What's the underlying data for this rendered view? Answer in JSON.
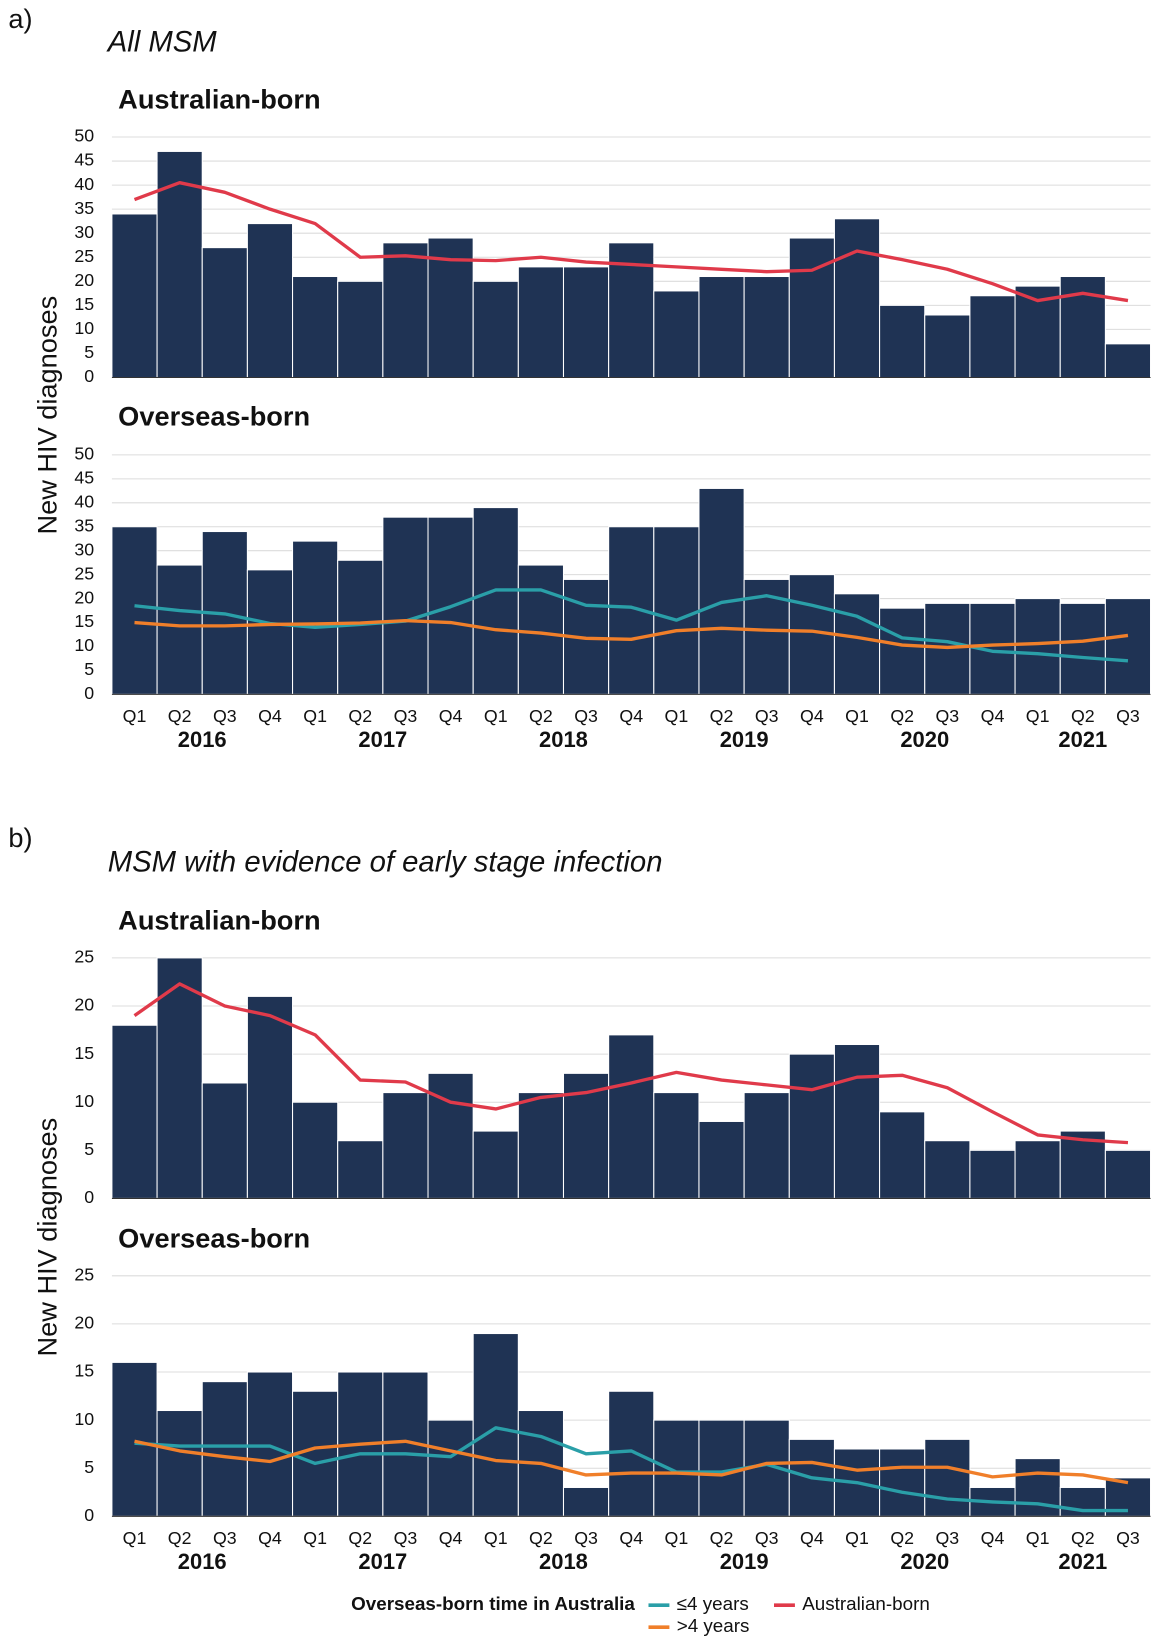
{
  "panels": [
    {
      "label": "a)",
      "title": "All MSM",
      "ylabel": "New HIV diagnoses"
    },
    {
      "label": "b)",
      "title": "MSM with evidence of early stage infection",
      "ylabel": "New HIV diagnoses"
    }
  ],
  "legend": {
    "title": "Overseas-born time in Australia",
    "position": "bottom"
  },
  "chart_data": [
    {
      "type": "bar",
      "title": "Australian-born",
      "bars": {
        "color": "#1f3354",
        "values": [
          34,
          47,
          27,
          32,
          21,
          20,
          28,
          29,
          20,
          23,
          23,
          28,
          18,
          21,
          21,
          29,
          33,
          15,
          13,
          17,
          19,
          21,
          7
        ]
      },
      "series": [
        {
          "name": "Australian-born",
          "color": "#e03a4a",
          "values": [
            37,
            40.5,
            38.5,
            35,
            32,
            25,
            25.3,
            24.5,
            24.3,
            25,
            24,
            23.5,
            23,
            22.5,
            22,
            22.3,
            26.3,
            24.5,
            22.5,
            19.5,
            16,
            17.5,
            16
          ]
        }
      ],
      "ylim": [
        0,
        50
      ],
      "yticks": [
        0,
        5,
        10,
        15,
        20,
        25,
        30,
        35,
        40,
        45,
        50
      ],
      "grid": true
    },
    {
      "type": "bar",
      "title": "Overseas-born",
      "bars": {
        "color": "#1f3354",
        "values": [
          35,
          27,
          34,
          26,
          32,
          28,
          37,
          37,
          39,
          27,
          24,
          35,
          35,
          43,
          24,
          25,
          21,
          18,
          19,
          19,
          20,
          19,
          20
        ]
      },
      "series": [
        {
          "name": "≤4 years",
          "color": "#2a9fa8",
          "values": [
            18.5,
            17.5,
            16.8,
            14.8,
            14,
            14.6,
            15.3,
            18.3,
            21.8,
            21.8,
            18.6,
            18.2,
            15.5,
            19.2,
            20.6,
            18.6,
            16.3,
            11.8,
            11,
            9,
            8.5,
            7.7,
            7
          ]
        },
        {
          "name": ">4 years",
          "color": "#f07f2a",
          "values": [
            15,
            14.3,
            14.3,
            14.6,
            14.7,
            14.9,
            15.4,
            15,
            13.5,
            12.8,
            11.7,
            11.5,
            13.3,
            13.8,
            13.4,
            13.2,
            11.9,
            10.3,
            9.8,
            10.3,
            10.6,
            11.1,
            12.3
          ]
        }
      ],
      "ylim": [
        0,
        50
      ],
      "yticks": [
        0,
        5,
        10,
        15,
        20,
        25,
        30,
        35,
        40,
        45,
        50
      ],
      "grid": true,
      "categories": [
        "Q1",
        "Q2",
        "Q3",
        "Q4",
        "Q1",
        "Q2",
        "Q3",
        "Q4",
        "Q1",
        "Q2",
        "Q3",
        "Q4",
        "Q1",
        "Q2",
        "Q3",
        "Q4",
        "Q1",
        "Q2",
        "Q3",
        "Q4",
        "Q1",
        "Q2",
        "Q3"
      ],
      "groups": [
        "2016",
        "2017",
        "2018",
        "2019",
        "2020",
        "2021"
      ]
    },
    {
      "type": "bar",
      "title": "Australian-born",
      "bars": {
        "color": "#1f3354",
        "values": [
          18,
          25,
          12,
          21,
          10,
          6,
          11,
          13,
          7,
          11,
          13,
          17,
          11,
          8,
          11,
          15,
          16,
          9,
          6,
          5,
          6,
          7,
          5
        ]
      },
      "series": [
        {
          "color": "#e03a4a",
          "values": [
            19,
            22.3,
            20,
            19,
            17,
            12.3,
            12.1,
            10,
            9.3,
            10.5,
            11,
            12,
            13.1,
            12.3,
            11.8,
            11.3,
            12.6,
            12.8,
            11.5,
            9,
            6.6,
            6.1,
            5.8
          ]
        }
      ],
      "ylim": [
        0,
        25
      ],
      "yticks": [
        0,
        5,
        10,
        15,
        20,
        25
      ],
      "grid": true
    },
    {
      "type": "bar",
      "title": "Overseas-born",
      "bars": {
        "color": "#1f3354",
        "values": [
          16,
          11,
          14,
          15,
          13,
          15,
          15,
          10,
          19,
          11,
          3,
          13,
          10,
          10,
          10,
          8,
          7,
          7,
          8,
          3,
          6,
          3,
          4
        ]
      },
      "series": [
        {
          "color": "#2a9fa8",
          "values": [
            7.6,
            7.3,
            7.3,
            7.3,
            5.5,
            6.5,
            6.5,
            6.2,
            9.2,
            8.3,
            6.5,
            6.8,
            4.6,
            4.6,
            5.4,
            4,
            3.5,
            2.5,
            1.8,
            1.5,
            1.3,
            0.6,
            0.6
          ]
        },
        {
          "color": "#f07f2a",
          "values": [
            7.8,
            6.8,
            6.2,
            5.7,
            7.1,
            7.5,
            7.8,
            6.8,
            5.8,
            5.5,
            4.3,
            4.5,
            4.5,
            4.3,
            5.5,
            5.6,
            4.8,
            5.1,
            5.1,
            4.1,
            4.5,
            4.3,
            3.5
          ]
        }
      ],
      "ylim": [
        0,
        25
      ],
      "yticks": [
        0,
        5,
        10,
        15,
        20,
        25
      ],
      "grid": true,
      "categories": [
        "Q1",
        "Q2",
        "Q3",
        "Q4",
        "Q1",
        "Q2",
        "Q3",
        "Q4",
        "Q1",
        "Q2",
        "Q3",
        "Q4",
        "Q1",
        "Q2",
        "Q3",
        "Q4",
        "Q1",
        "Q2",
        "Q3",
        "Q4",
        "Q1",
        "Q2",
        "Q3"
      ],
      "groups": [
        "2016",
        "2017",
        "2018",
        "2019",
        "2020",
        "2021"
      ]
    }
  ]
}
